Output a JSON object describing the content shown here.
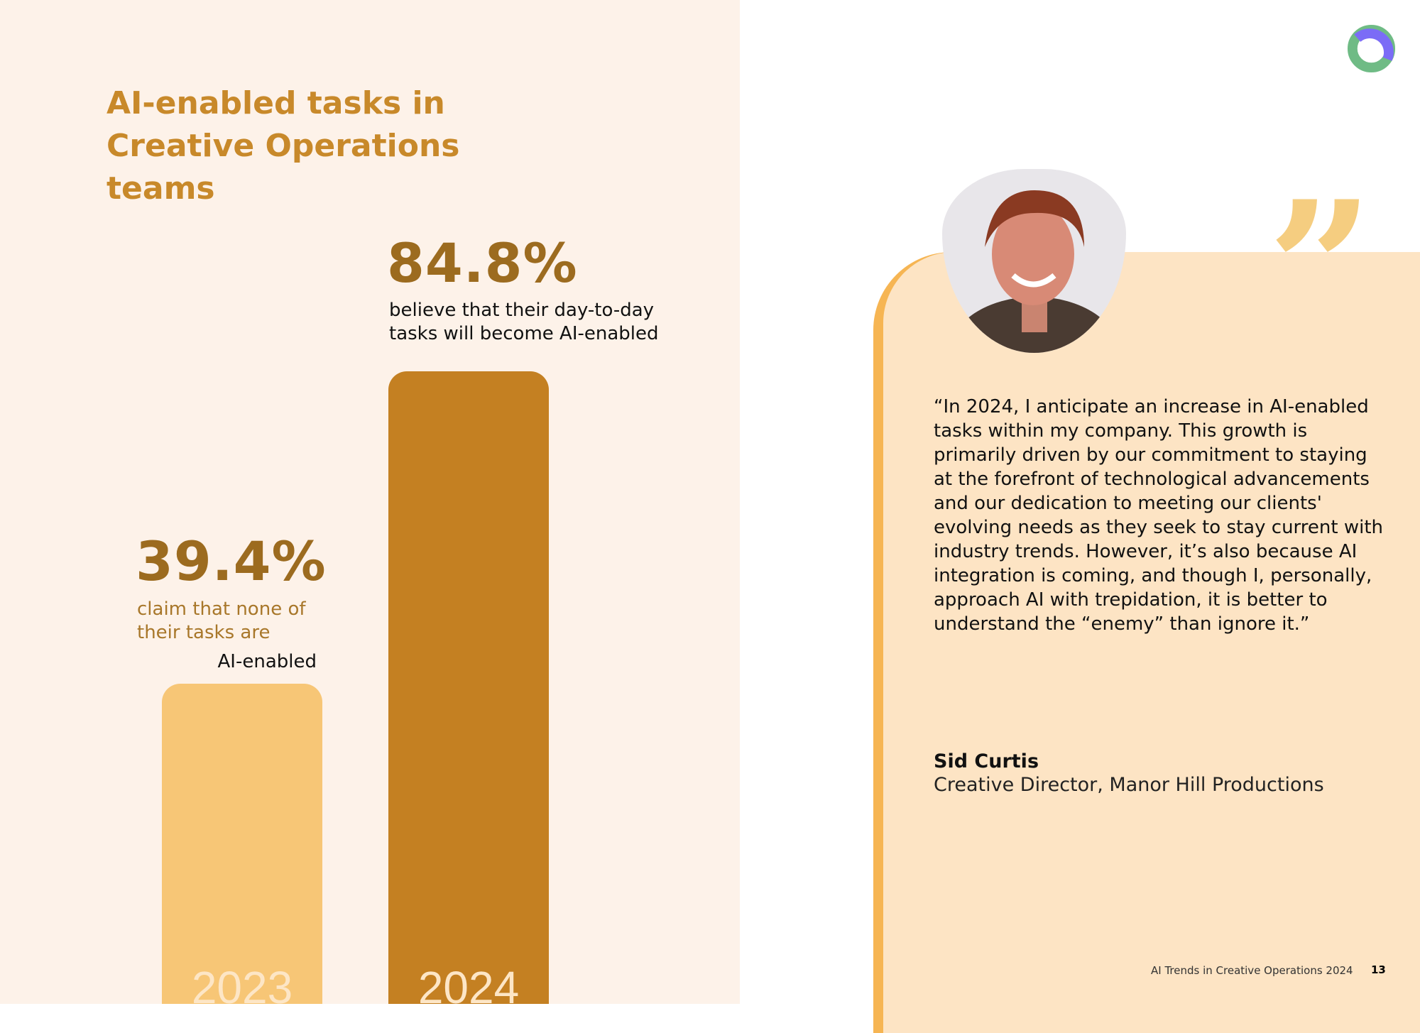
{
  "title": "AI-enabled tasks in Creative Operations teams",
  "stat_2024": {
    "value": "84.8%",
    "desc": "believe that their day-to-day tasks will become AI-enabled"
  },
  "stat_2023": {
    "value": "39.4%",
    "desc_line1": "claim that none of their tasks are",
    "desc_line2": "AI-enabled"
  },
  "chart_data": {
    "type": "bar",
    "categories": [
      "2023",
      "2024"
    ],
    "values": [
      39.4,
      84.8
    ],
    "title": "AI-enabled tasks in Creative Operations teams",
    "colors": [
      "#f7c676",
      "#c48022"
    ]
  },
  "quote": {
    "text": "“In 2024, I anticipate an increase in AI-enabled tasks within my company. This growth is primarily driven by our commitment to staying at the forefront of technological advancements and our dedication to meeting our clients' evolving needs as they seek to stay current with industry trends. However, it’s also because AI integration is coming, and though I, personally, approach AI with trepidation, it is better to understand the “enemy” than ignore it.”",
    "author": "Sid Curtis",
    "role": "Creative Director, Manor Hill Productions"
  },
  "footer": {
    "title": "AI Trends in Creative Operations 2024",
    "page": "13"
  }
}
